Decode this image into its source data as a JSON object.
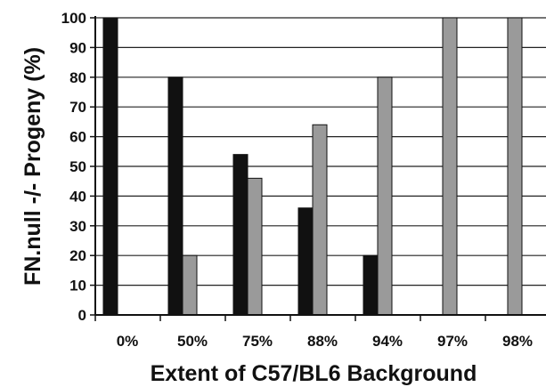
{
  "chart_data": {
    "type": "bar",
    "title": "",
    "xlabel": "Extent of C57/BL6 Background",
    "ylabel": "FN.null -/- Progeny (%)",
    "categories": [
      "0%",
      "50%",
      "75%",
      "88%",
      "94%",
      "97%",
      "98%"
    ],
    "series": [
      {
        "values": [
          100,
          80,
          54,
          36,
          20,
          0,
          0
        ],
        "color": "#111111"
      },
      {
        "values": [
          0,
          20,
          46,
          64,
          80,
          100,
          100
        ],
        "color": "#9a9a9a"
      }
    ],
    "ylim": [
      0,
      100
    ],
    "yticks": [
      0,
      10,
      20,
      30,
      40,
      50,
      60,
      70,
      80,
      90,
      100
    ],
    "grid": true,
    "legend": "none"
  }
}
